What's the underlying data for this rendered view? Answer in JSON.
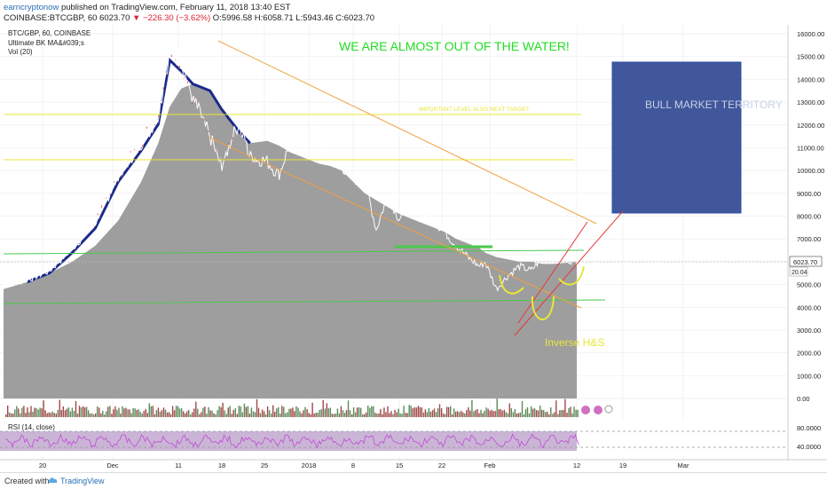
{
  "header": {
    "user": "earncryptonow",
    "published": "published on TradingView.com, February 11, 2018 13:40 EST",
    "symbol": "COINBASE:BTCGBP, 60",
    "price": "6023.70",
    "change": "▼ −226.30 (−3.62%)",
    "ohlc": "O:5996.58 H:6058.71 L:5943.46 C:6023.70"
  },
  "legend": {
    "line1": "BTC/GBP, 60, COINBASE",
    "line2": "Ultimate BK MA&#039;s",
    "line3": "Vol (20)"
  },
  "annotations": {
    "headline": "WE ARE ALMOST OUT OF THE WATER!",
    "bull": "BULL MARKET TERRITORY",
    "level": "IMPORTANT LEVEL ALSO NEXT TARGET",
    "pattern": "Inverse H&S"
  },
  "footer": {
    "created": "Created with",
    "brand": "TradingView"
  },
  "colors": {
    "price": "#ffffff",
    "ma_fill": "#9e9e9e",
    "ma_dark": "#1b2a8a",
    "headline": "#22dd22",
    "target": "#e7e739",
    "rsi": "#9b2fae",
    "box": "#1f3a8a"
  },
  "chart_data": {
    "type": "line",
    "title": "BTC/GBP, 60, COINBASE",
    "x_ticks": [
      "20",
      "Dec",
      "11",
      "18",
      "25",
      "2018",
      "8",
      "15",
      "22",
      "Feb",
      "12",
      "19",
      "Mar"
    ],
    "y_ticks": [
      "16000.00",
      "15000.00",
      "14000.00",
      "13000.00",
      "12000.00",
      "11000.00",
      "10000.00",
      "9000.00",
      "8000.00",
      "7000.00",
      "6000.00",
      "5000.00",
      "4000.00",
      "3000.00",
      "2000.00",
      "1000.00",
      "0.00"
    ],
    "ylim": [
      0,
      16300
    ],
    "price_series_x": [
      0,
      0.04,
      0.08,
      0.12,
      0.16,
      0.2,
      0.24,
      0.27,
      0.29,
      0.31,
      0.33,
      0.36,
      0.38,
      0.41,
      0.43,
      0.46,
      0.48,
      0.5,
      0.53,
      0.55,
      0.57,
      0.59,
      0.61,
      0.63,
      0.65,
      0.67,
      0.69,
      0.71,
      0.73,
      0.75,
      0.77,
      0.79,
      0.81,
      0.83,
      0.84,
      0.86,
      0.88,
      0.9,
      0.92,
      0.94,
      0.96,
      0.98,
      1.0
    ],
    "price_series": [
      5000,
      5200,
      5600,
      6600,
      7700,
      9800,
      11200,
      12400,
      15300,
      14800,
      13200,
      11500,
      10200,
      12100,
      10600,
      10400,
      9800,
      11200,
      12600,
      11300,
      10500,
      10200,
      9600,
      9700,
      7400,
      8900,
      7900,
      8500,
      8200,
      7800,
      7300,
      6700,
      6200,
      5800,
      6000,
      4800,
      5400,
      5800,
      5600,
      6200,
      6300,
      6100,
      6023.7
    ],
    "ma_series": [
      4800,
      5100,
      5500,
      6000,
      6700,
      7800,
      9500,
      11200,
      12800,
      13600,
      13800,
      13500,
      12700,
      11700,
      11200,
      11300,
      11100,
      10800,
      10500,
      10300,
      10200,
      10000,
      9500,
      9000,
      8700,
      8400,
      8100,
      7900,
      7700,
      7500,
      7300,
      7000,
      6800,
      6600,
      6400,
      6200,
      6100,
      6000,
      6000,
      5900,
      5900,
      5950,
      6000
    ],
    "hlines": [
      12500,
      10400,
      6600,
      4300
    ],
    "last_price": "6023.70",
    "last_label": "20.04",
    "rsi_levels": [
      "80.0000",
      "40.0000"
    ],
    "rsi_label": "RSI (14, close)"
  }
}
